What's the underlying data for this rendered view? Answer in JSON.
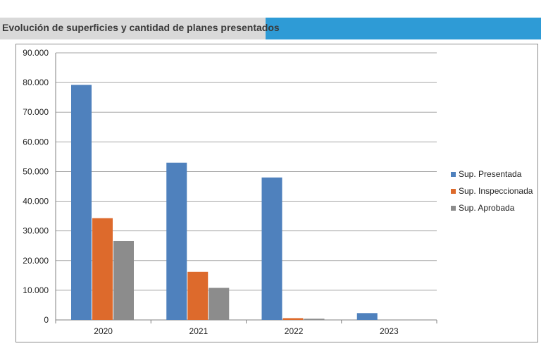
{
  "header": {
    "title": "Evolución de superficies y cantidad de planes presentados",
    "accent_color": "#2e9bd6",
    "panel_color": "#d9d9d9"
  },
  "chart_data": {
    "type": "bar",
    "title": "",
    "xlabel": "",
    "ylabel": "",
    "categories": [
      "2020",
      "2021",
      "2022",
      "2023"
    ],
    "ylim": [
      0,
      90000
    ],
    "yticks": [
      "0",
      "10.000",
      "20.000",
      "30.000",
      "40.000",
      "50.000",
      "60.000",
      "70.000",
      "80.000",
      "90.000"
    ],
    "grid": true,
    "legend_position": "right",
    "series": [
      {
        "name": "Sup. Presentada",
        "color": "#4f81bd",
        "values": [
          79200,
          53000,
          48000,
          2300
        ]
      },
      {
        "name": "Sup. Inspeccionada",
        "color": "#dd6a2c",
        "values": [
          34300,
          16200,
          600,
          0
        ]
      },
      {
        "name": "Sup. Aprobada",
        "color": "#8c8c8c",
        "values": [
          26600,
          10800,
          400,
          0
        ]
      }
    ]
  }
}
